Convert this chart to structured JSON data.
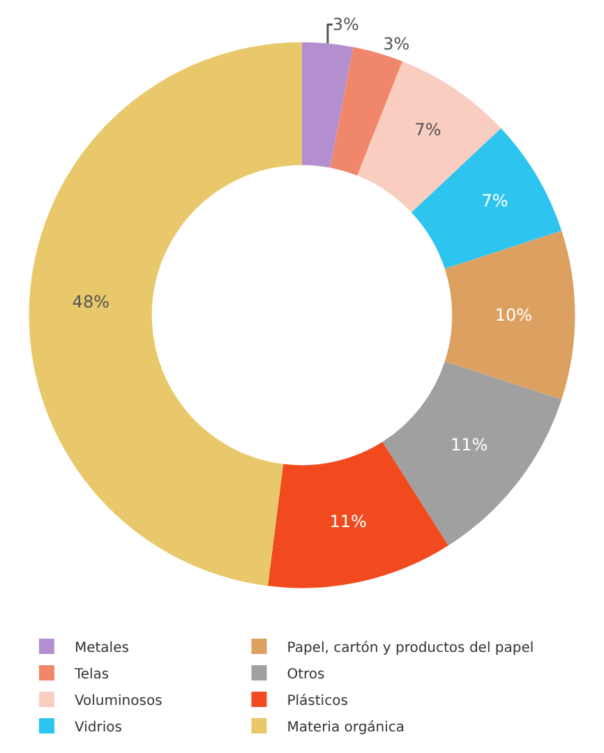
{
  "chart_data": {
    "type": "donut",
    "categories": [
      "Metales",
      "Telas",
      "Voluminosos",
      "Vidrios",
      "Papel, cartón y productos del papel",
      "Otros",
      "Plásticos",
      "Materia orgánica"
    ],
    "values": [
      3,
      3,
      7,
      7,
      10,
      11,
      11,
      48
    ],
    "colors": [
      "#b48fd0",
      "#f0876a",
      "#f9cdc0",
      "#2ec4f0",
      "#dca060",
      "#a0a0a0",
      "#f04a1e",
      "#e8c86a"
    ],
    "value_labels": [
      "3%",
      "3%",
      "7%",
      "7%",
      "10%",
      "11%",
      "11%",
      "48%"
    ],
    "legend": "bottom"
  }
}
